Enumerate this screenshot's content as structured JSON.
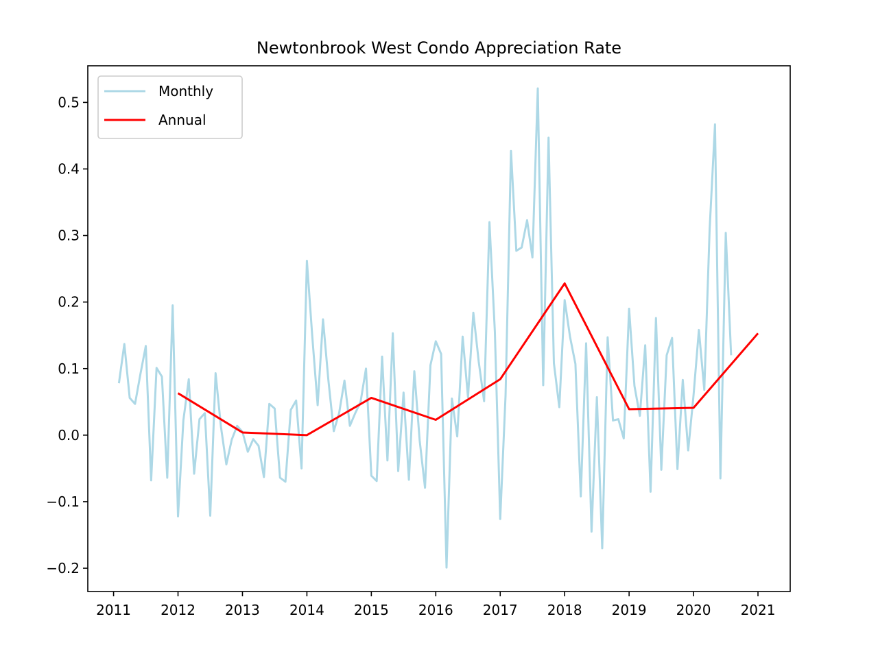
{
  "chart_data": {
    "type": "line",
    "title": "Newtonbrook West Condo Appreciation Rate",
    "xlabel": "",
    "ylabel": "",
    "xlim": [
      2010.6,
      2021.5
    ],
    "ylim": [
      -0.235,
      0.555
    ],
    "x_ticks": [
      "2011",
      "2012",
      "2013",
      "2014",
      "2015",
      "2016",
      "2017",
      "2018",
      "2019",
      "2020",
      "2021"
    ],
    "y_ticks": [
      "−0.2",
      "−0.1",
      "0.0",
      "0.1",
      "0.2",
      "0.3",
      "0.4",
      "0.5"
    ],
    "y_tick_values": [
      -0.2,
      -0.1,
      0.0,
      0.1,
      0.2,
      0.3,
      0.4,
      0.5
    ],
    "grid": false,
    "legend_position": "top-left",
    "series": [
      {
        "name": "Monthly",
        "color": "#add8e6",
        "x": [
          2011.083,
          2011.167,
          2011.25,
          2011.333,
          2011.417,
          2011.5,
          2011.583,
          2011.667,
          2011.75,
          2011.833,
          2011.917,
          2012.0,
          2012.083,
          2012.167,
          2012.25,
          2012.333,
          2012.417,
          2012.5,
          2012.583,
          2012.667,
          2012.75,
          2012.833,
          2012.917,
          2013.0,
          2013.083,
          2013.167,
          2013.25,
          2013.333,
          2013.417,
          2013.5,
          2013.583,
          2013.667,
          2013.75,
          2013.833,
          2013.917,
          2014.0,
          2014.083,
          2014.167,
          2014.25,
          2014.333,
          2014.417,
          2014.5,
          2014.583,
          2014.667,
          2014.75,
          2014.833,
          2014.917,
          2015.0,
          2015.083,
          2015.167,
          2015.25,
          2015.333,
          2015.417,
          2015.5,
          2015.583,
          2015.667,
          2015.75,
          2015.833,
          2015.917,
          2016.0,
          2016.083,
          2016.167,
          2016.25,
          2016.333,
          2016.417,
          2016.5,
          2016.583,
          2016.667,
          2016.75,
          2016.833,
          2016.917,
          2017.0,
          2017.083,
          2017.167,
          2017.25,
          2017.333,
          2017.417,
          2017.5,
          2017.583,
          2017.667,
          2017.75,
          2017.833,
          2017.917,
          2018.0,
          2018.083,
          2018.167,
          2018.25,
          2018.333,
          2018.417,
          2018.5,
          2018.583,
          2018.667,
          2018.75,
          2018.833,
          2018.917,
          2019.0,
          2019.083,
          2019.167,
          2019.25,
          2019.333,
          2019.417,
          2019.5,
          2019.583,
          2019.667,
          2019.75,
          2019.833,
          2019.917,
          2020.0,
          2020.083,
          2020.167,
          2020.25,
          2020.333,
          2020.417,
          2020.5,
          2020.583
        ],
        "values": [
          0.078,
          0.137,
          0.056,
          0.047,
          0.092,
          0.134,
          -0.068,
          0.101,
          0.088,
          -0.064,
          0.195,
          -0.122,
          0.022,
          0.084,
          -0.058,
          0.024,
          0.033,
          -0.121,
          0.093,
          0.012,
          -0.044,
          -0.007,
          0.014,
          0.005,
          -0.025,
          -0.006,
          -0.016,
          -0.063,
          0.047,
          0.04,
          -0.064,
          -0.07,
          0.038,
          0.052,
          -0.05,
          0.262,
          0.149,
          0.045,
          0.174,
          0.083,
          0.006,
          0.033,
          0.082,
          0.014,
          0.033,
          0.05,
          0.1,
          -0.061,
          -0.069,
          0.118,
          -0.038,
          0.153,
          -0.054,
          0.064,
          -0.067,
          0.096,
          -0.008,
          -0.079,
          0.105,
          0.141,
          0.122,
          -0.199,
          0.055,
          -0.002,
          0.148,
          0.057,
          0.184,
          0.11,
          0.051,
          0.32,
          0.155,
          -0.126,
          0.06,
          0.427,
          0.277,
          0.282,
          0.323,
          0.267,
          0.521,
          0.075,
          0.447,
          0.108,
          0.042,
          0.203,
          0.148,
          0.107,
          -0.092,
          0.138,
          -0.145,
          0.057,
          -0.17,
          0.147,
          0.022,
          0.024,
          -0.005,
          0.19,
          0.074,
          0.029,
          0.135,
          -0.085,
          0.176,
          -0.052,
          0.12,
          0.146,
          -0.051,
          0.083,
          -0.023,
          0.06,
          0.158,
          0.068,
          0.31,
          0.467,
          -0.065,
          0.304,
          0.12
        ]
      },
      {
        "name": "Annual",
        "color": "#ff0000",
        "x": [
          2012,
          2013,
          2014,
          2015,
          2016,
          2017,
          2018,
          2019,
          2020,
          2021
        ],
        "values": [
          0.063,
          0.004,
          0.0,
          0.056,
          0.023,
          0.084,
          0.228,
          0.039,
          0.041,
          0.153
        ]
      }
    ]
  }
}
